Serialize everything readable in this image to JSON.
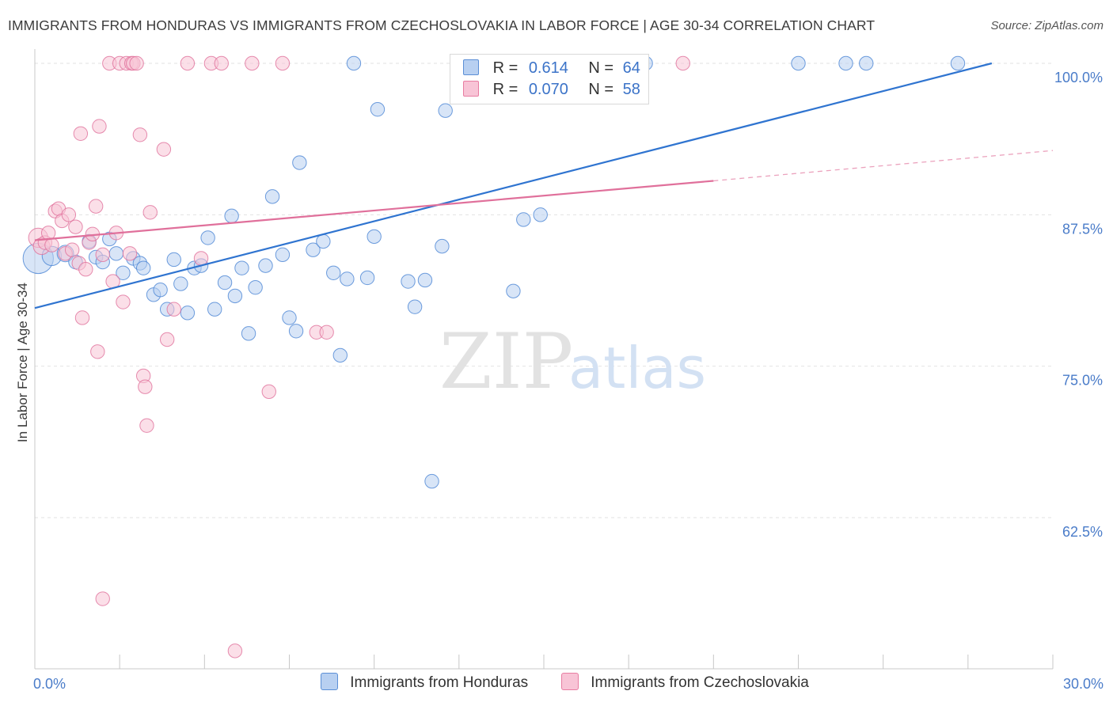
{
  "title": "IMMIGRANTS FROM HONDURAS VS IMMIGRANTS FROM CZECHOSLOVAKIA IN LABOR FORCE | AGE 30-34 CORRELATION CHART",
  "source": "Source: ZipAtlas.com",
  "watermark": {
    "zip": "ZIP",
    "atlas": "atlas"
  },
  "legend": {
    "r_label": "R =",
    "n_label": "N =",
    "rows": [
      {
        "r": "0.614",
        "n": "64",
        "color": "#5b8fd6",
        "fill": "#b8d0f1"
      },
      {
        "r": "0.070",
        "n": "58",
        "color": "#e87ca1",
        "fill": "#f8c4d6"
      }
    ]
  },
  "bottom_legend": [
    {
      "label": "Immigrants from Honduras",
      "fill": "#b8d0f1",
      "stroke": "#5b8fd6"
    },
    {
      "label": "Immigrants from Czechoslovakia",
      "fill": "#f8c4d6",
      "stroke": "#e87ca1"
    }
  ],
  "chart_data": {
    "type": "scatter",
    "ylabel": "In Labor Force | Age 30-34",
    "xlim": [
      0,
      30
    ],
    "ylim": [
      50.5,
      102
    ],
    "x_tick_labels": [
      {
        "value": 0,
        "label": "0.0%"
      },
      {
        "value": 30,
        "label": "30.0%"
      }
    ],
    "y_tick_labels": [
      {
        "value": 100,
        "label": "100.0%"
      },
      {
        "value": 87.5,
        "label": "87.5%"
      },
      {
        "value": 75,
        "label": "75.0%"
      },
      {
        "value": 62.5,
        "label": "62.5%"
      }
    ],
    "grid": true,
    "series": [
      {
        "name": "Immigrants from Honduras",
        "color": "#4a84d4",
        "fill": "#b8d0f1",
        "trend": {
          "x0": 0,
          "y0": 79.8,
          "x1": 28.2,
          "y1": 100
        },
        "points": [
          [
            0.1,
            83.9,
            22
          ],
          [
            0.5,
            84.1,
            14
          ],
          [
            0.9,
            84.3,
            12
          ],
          [
            1.2,
            83.6,
            10
          ],
          [
            1.6,
            85.3,
            10
          ],
          [
            1.8,
            84.0,
            10
          ],
          [
            2.0,
            83.6,
            10
          ],
          [
            2.2,
            85.5,
            10
          ],
          [
            2.4,
            84.3,
            10
          ],
          [
            2.6,
            82.7,
            10
          ],
          [
            2.9,
            83.9,
            10
          ],
          [
            3.1,
            83.5,
            10
          ],
          [
            3.2,
            83.1,
            10
          ],
          [
            3.5,
            80.9,
            10
          ],
          [
            3.7,
            81.3,
            10
          ],
          [
            3.9,
            79.7,
            10
          ],
          [
            4.1,
            83.8,
            10
          ],
          [
            4.3,
            81.8,
            10
          ],
          [
            4.5,
            79.4,
            10
          ],
          [
            4.7,
            83.1,
            10
          ],
          [
            4.9,
            83.3,
            10
          ],
          [
            5.1,
            85.6,
            10
          ],
          [
            5.3,
            79.7,
            10
          ],
          [
            5.6,
            81.9,
            10
          ],
          [
            5.8,
            87.4,
            10
          ],
          [
            5.9,
            80.8,
            10
          ],
          [
            6.1,
            83.1,
            10
          ],
          [
            6.3,
            77.7,
            10
          ],
          [
            6.5,
            81.5,
            10
          ],
          [
            6.8,
            83.3,
            10
          ],
          [
            7.0,
            89.0,
            10
          ],
          [
            7.3,
            84.2,
            10
          ],
          [
            7.5,
            79.0,
            10
          ],
          [
            7.7,
            77.9,
            10
          ],
          [
            7.8,
            91.8,
            10
          ],
          [
            8.2,
            84.6,
            10
          ],
          [
            8.5,
            85.3,
            10
          ],
          [
            8.8,
            82.7,
            10
          ],
          [
            9.0,
            75.9,
            10
          ],
          [
            9.2,
            82.2,
            10
          ],
          [
            9.4,
            100.0,
            10
          ],
          [
            9.8,
            82.3,
            10
          ],
          [
            10.0,
            85.7,
            10
          ],
          [
            10.1,
            96.2,
            10
          ],
          [
            11.0,
            82.0,
            10
          ],
          [
            11.2,
            79.9,
            10
          ],
          [
            11.5,
            82.1,
            10
          ],
          [
            11.7,
            65.5,
            10
          ],
          [
            12.0,
            84.9,
            10
          ],
          [
            12.1,
            96.1,
            10
          ],
          [
            13.0,
            100.0,
            10
          ],
          [
            14.1,
            81.2,
            10
          ],
          [
            14.4,
            87.1,
            10
          ],
          [
            14.9,
            87.5,
            10
          ],
          [
            15.2,
            98.5,
            10
          ],
          [
            16.5,
            100.0,
            10
          ],
          [
            18.0,
            100.0,
            10
          ],
          [
            22.5,
            100.0,
            10
          ],
          [
            23.9,
            100.0,
            10
          ],
          [
            24.5,
            100.0,
            10
          ],
          [
            27.2,
            100.0,
            10
          ]
        ]
      },
      {
        "name": "Immigrants from Czechoslovakia",
        "color": "#e0709b",
        "fill": "#f8c4d6",
        "trend": {
          "x0": 0,
          "y0": 85.4,
          "x1": 20.0,
          "y1": 90.3
        },
        "trend_dashed": {
          "x0": 20.0,
          "y0": 90.3,
          "x1": 30.0,
          "y1": 92.8
        },
        "points": [
          [
            0.1,
            85.6,
            14
          ],
          [
            0.2,
            84.9,
            12
          ],
          [
            0.3,
            85.2,
            10
          ],
          [
            0.4,
            86.0,
            10
          ],
          [
            0.5,
            85.0,
            10
          ],
          [
            0.6,
            87.8,
            10
          ],
          [
            0.7,
            88.0,
            10
          ],
          [
            0.8,
            87.0,
            10
          ],
          [
            0.9,
            84.3,
            10
          ],
          [
            1.0,
            87.5,
            10
          ],
          [
            1.1,
            84.6,
            10
          ],
          [
            1.2,
            86.5,
            10
          ],
          [
            1.3,
            83.5,
            10
          ],
          [
            1.35,
            94.2,
            10
          ],
          [
            1.4,
            79.0,
            10
          ],
          [
            1.5,
            83.0,
            10
          ],
          [
            1.6,
            85.2,
            10
          ],
          [
            1.7,
            85.9,
            10
          ],
          [
            1.8,
            88.2,
            10
          ],
          [
            1.85,
            76.2,
            10
          ],
          [
            1.9,
            94.8,
            10
          ],
          [
            2.0,
            84.2,
            10
          ],
          [
            2.2,
            100.0,
            10
          ],
          [
            2.3,
            82.0,
            10
          ],
          [
            2.4,
            86.0,
            10
          ],
          [
            2.5,
            100.0,
            10
          ],
          [
            2.6,
            80.3,
            10
          ],
          [
            2.7,
            100.0,
            10
          ],
          [
            2.8,
            84.3,
            10
          ],
          [
            2.85,
            100.0,
            10
          ],
          [
            2.9,
            100.0,
            10
          ],
          [
            3.0,
            100.0,
            10
          ],
          [
            3.1,
            94.1,
            10
          ],
          [
            3.2,
            74.2,
            10
          ],
          [
            3.25,
            73.3,
            10
          ],
          [
            3.3,
            70.1,
            10
          ],
          [
            3.4,
            87.7,
            10
          ],
          [
            3.8,
            92.9,
            10
          ],
          [
            3.9,
            77.2,
            10
          ],
          [
            4.1,
            79.7,
            10
          ],
          [
            4.5,
            100.0,
            10
          ],
          [
            5.2,
            100.0,
            10
          ],
          [
            4.9,
            83.9,
            10
          ],
          [
            5.5,
            100.0,
            10
          ],
          [
            5.9,
            51.5,
            10
          ],
          [
            6.4,
            100.0,
            10
          ],
          [
            6.9,
            72.9,
            10
          ],
          [
            7.3,
            100.0,
            10
          ],
          [
            8.3,
            77.8,
            10
          ],
          [
            8.6,
            77.8,
            10
          ],
          [
            2.0,
            55.8,
            10
          ],
          [
            19.1,
            100.0,
            10
          ]
        ]
      }
    ]
  }
}
